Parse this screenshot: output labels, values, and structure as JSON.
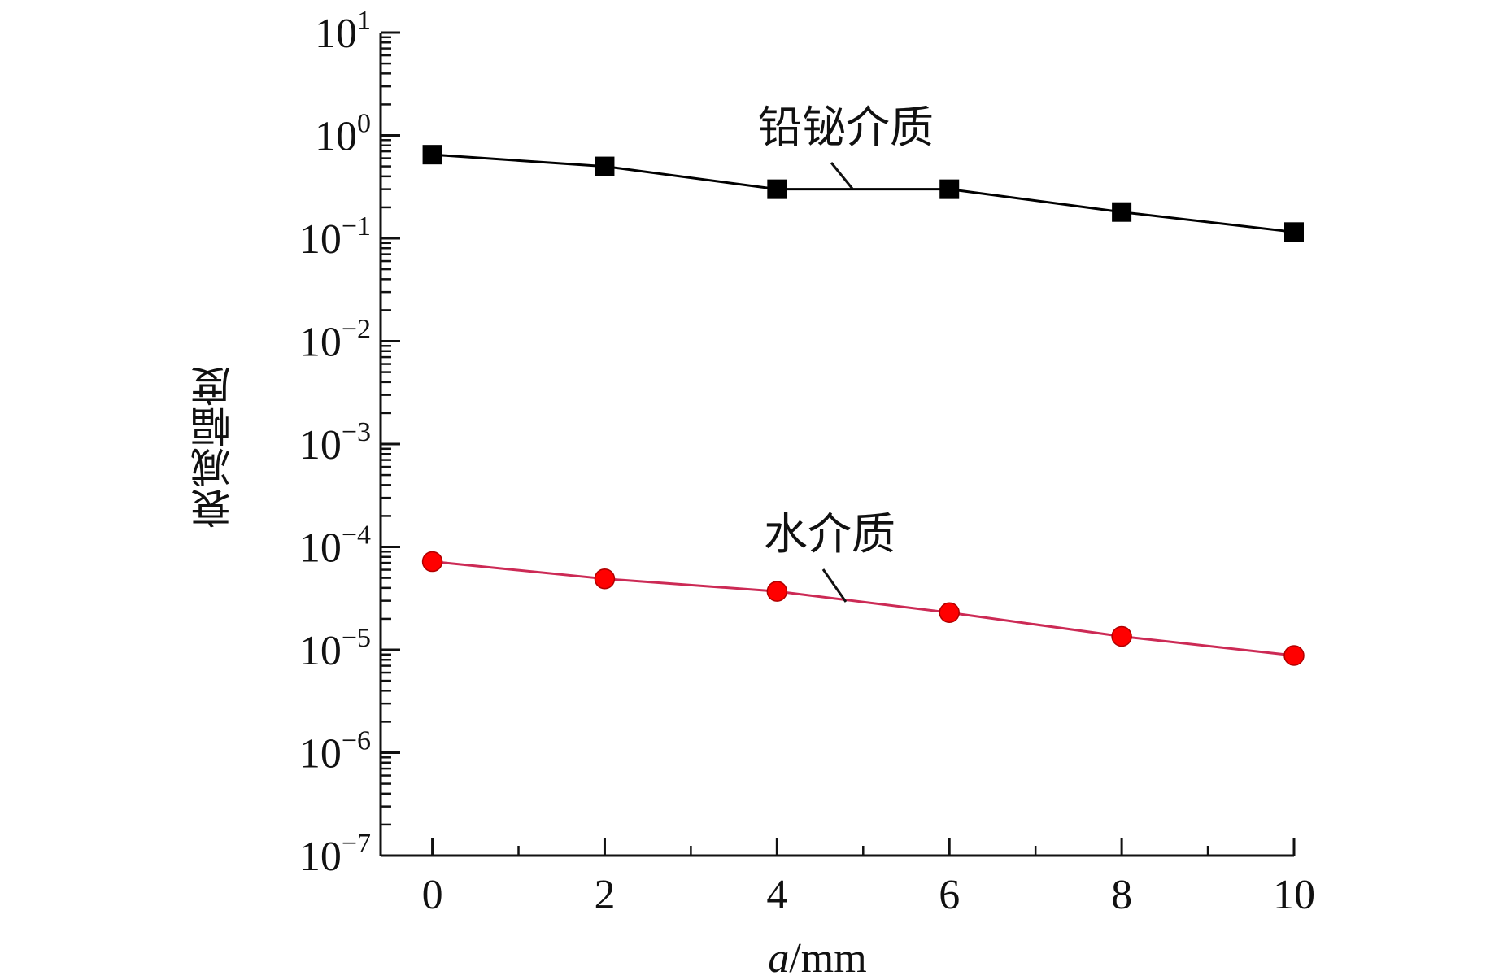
{
  "chart_data": {
    "type": "line",
    "title": "",
    "xlabel_italic": "a",
    "xlabel_rest": "/mm",
    "ylabel": "衰减幅度",
    "x": [
      0,
      2,
      4,
      6,
      8,
      10
    ],
    "xticks": [
      "0",
      "2",
      "4",
      "6",
      "8",
      "10"
    ],
    "xlim": [
      -0.6,
      10
    ],
    "ylog": true,
    "ylim": [
      1e-07,
      10
    ],
    "yticks": [
      {
        "base": "10",
        "exp": "1"
      },
      {
        "base": "10",
        "exp": "0"
      },
      {
        "base": "10",
        "exp": "−1"
      },
      {
        "base": "10",
        "exp": "−2"
      },
      {
        "base": "10",
        "exp": "−3"
      },
      {
        "base": "10",
        "exp": "−4"
      },
      {
        "base": "10",
        "exp": "−5"
      },
      {
        "base": "10",
        "exp": "−6"
      },
      {
        "base": "10",
        "exp": "−7"
      }
    ],
    "series": [
      {
        "name": "铅铋介质",
        "marker": "square",
        "color": "#000000",
        "line_color": "#000000",
        "values": [
          0.65,
          0.5,
          0.3,
          0.3,
          0.18,
          0.115
        ]
      },
      {
        "name": "水介质",
        "marker": "circle",
        "color": "#ff0000",
        "line_color": "#cc2a55",
        "values": [
          7.2e-05,
          4.9e-05,
          3.7e-05,
          2.3e-05,
          1.35e-05,
          8.8e-06
        ]
      }
    ],
    "grid": false,
    "legend": "inline-annotations"
  }
}
